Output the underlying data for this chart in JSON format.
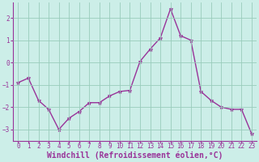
{
  "x": [
    0,
    1,
    2,
    3,
    4,
    5,
    6,
    7,
    8,
    9,
    10,
    11,
    12,
    13,
    14,
    15,
    16,
    17,
    18,
    19,
    20,
    21,
    22,
    23
  ],
  "y": [
    -0.9,
    -0.7,
    -1.7,
    -2.1,
    -3.0,
    -2.5,
    -2.2,
    -1.8,
    -1.8,
    -1.5,
    -1.3,
    -1.25,
    0.05,
    0.6,
    1.1,
    2.4,
    1.2,
    1.0,
    -1.3,
    -1.7,
    -2.0,
    -2.1,
    -2.1,
    -3.2
  ],
  "line_color": "#993399",
  "marker": "*",
  "marker_size": 3.5,
  "bg_color": "#cceee8",
  "grid_color": "#99ccbb",
  "axis_color": "#993399",
  "xlabel": "Windchill (Refroidissement éolien,°C)",
  "xlabel_color": "#993399",
  "ylim": [
    -3.5,
    2.7
  ],
  "yticks": [
    -3,
    -2,
    -1,
    0,
    1,
    2
  ],
  "xticks": [
    0,
    1,
    2,
    3,
    4,
    5,
    6,
    7,
    8,
    9,
    10,
    11,
    12,
    13,
    14,
    15,
    16,
    17,
    18,
    19,
    20,
    21,
    22,
    23
  ],
  "tick_fontsize": 5.5,
  "xlabel_fontsize": 7.0,
  "spine_color": "#993399"
}
